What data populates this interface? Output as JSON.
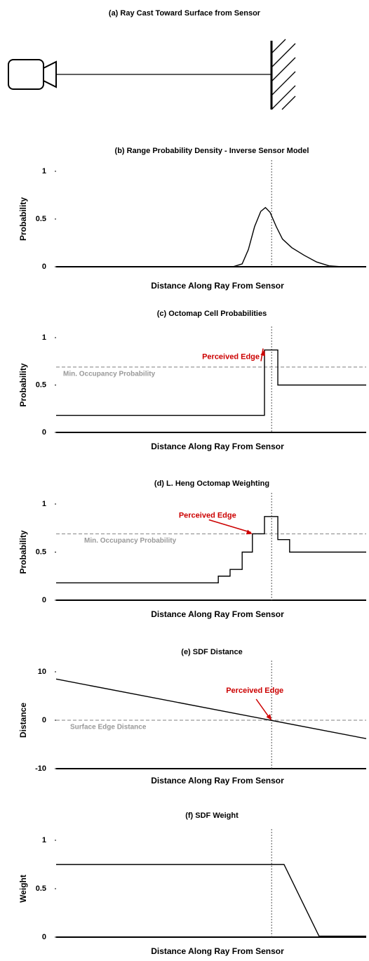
{
  "diagram": {
    "title": "(a) Ray Cast Toward Surface from Sensor"
  },
  "chart_data": [
    {
      "type": "line",
      "title": "(b) Range Probability Density - Inverse Sensor Model",
      "xlabel": "Distance Along Ray From Sensor",
      "ylabel": "Probability",
      "color": "#000000",
      "x": [
        0,
        57,
        60,
        62,
        64,
        66,
        67.5,
        69,
        71,
        73,
        76,
        80,
        84,
        88,
        92,
        100
      ],
      "values": [
        0,
        0,
        0.03,
        0.18,
        0.42,
        0.58,
        0.62,
        0.57,
        0.42,
        0.29,
        0.2,
        0.12,
        0.05,
        0.01,
        0,
        0
      ],
      "xlim": [
        0,
        100
      ],
      "ylim": [
        0,
        1
      ],
      "yticks": [
        0,
        0.5,
        1
      ],
      "surface_x": 69.5
    },
    {
      "type": "line",
      "title": "(c) Octomap Cell Probabilities",
      "xlabel": "Distance Along Ray From Sensor",
      "ylabel": "Probability",
      "color": "#000000",
      "x": [
        0,
        67.2,
        67.2,
        71.5,
        71.5,
        100
      ],
      "values": [
        0.18,
        0.18,
        0.87,
        0.87,
        0.5,
        0.5
      ],
      "xlim": [
        0,
        100
      ],
      "ylim": [
        0,
        1
      ],
      "yticks": [
        0,
        0.5,
        1
      ],
      "surface_x": 69.5,
      "threshold": {
        "value": 0.69,
        "label": "Min. Occupancy Probability",
        "color": "#999999"
      },
      "annotation": {
        "text": "Perceived Edge",
        "x": 67.2,
        "y": 0.87,
        "color": "#cc0000"
      }
    },
    {
      "type": "line",
      "title": "(d) L. Heng Octomap Weighting",
      "xlabel": "Distance Along Ray From Sensor",
      "ylabel": "Probability",
      "color": "#000000",
      "x": [
        0,
        52.3,
        52.3,
        56.1,
        56.1,
        60,
        60,
        63.3,
        63.3,
        67.2,
        67.2,
        71.5,
        71.5,
        75.3,
        75.3,
        100
      ],
      "values": [
        0.18,
        0.18,
        0.25,
        0.25,
        0.32,
        0.32,
        0.5,
        0.5,
        0.69,
        0.69,
        0.87,
        0.87,
        0.63,
        0.63,
        0.5,
        0.5
      ],
      "xlim": [
        0,
        100
      ],
      "ylim": [
        0,
        1
      ],
      "yticks": [
        0,
        0.5,
        1
      ],
      "surface_x": 69.5,
      "threshold": {
        "value": 0.69,
        "label": "Min. Occupancy Probability",
        "color": "#999999"
      },
      "annotation": {
        "text": "Perceived Edge",
        "x": 63.3,
        "y": 0.69,
        "color": "#cc0000"
      }
    },
    {
      "type": "line",
      "title": "(e) SDF Distance",
      "xlabel": "Distance Along Ray From Sensor",
      "ylabel": "Distance",
      "color": "#000000",
      "x": [
        0,
        100
      ],
      "values": [
        8.5,
        -3.8
      ],
      "xlim": [
        0,
        100
      ],
      "ylim": [
        -10,
        10
      ],
      "yticks": [
        -10,
        0,
        10
      ],
      "surface_x": 69.5,
      "threshold": {
        "value": 0,
        "label": "Surface Edge Distance",
        "color": "#999999"
      },
      "annotation": {
        "text": "Perceived Edge",
        "x": 69.5,
        "y": 0,
        "color": "#cc0000"
      }
    },
    {
      "type": "line",
      "title": "(f) SDF Weight",
      "xlabel": "Distance Along Ray From Sensor",
      "ylabel": "Weight",
      "color": "#000000",
      "x": [
        0,
        73.5,
        84.8,
        100
      ],
      "values": [
        0.75,
        0.75,
        0.01,
        0.01
      ],
      "xlim": [
        0,
        100
      ],
      "ylim": [
        0,
        1
      ],
      "yticks": [
        0,
        0.5,
        1
      ],
      "surface_x": 69.5
    }
  ]
}
